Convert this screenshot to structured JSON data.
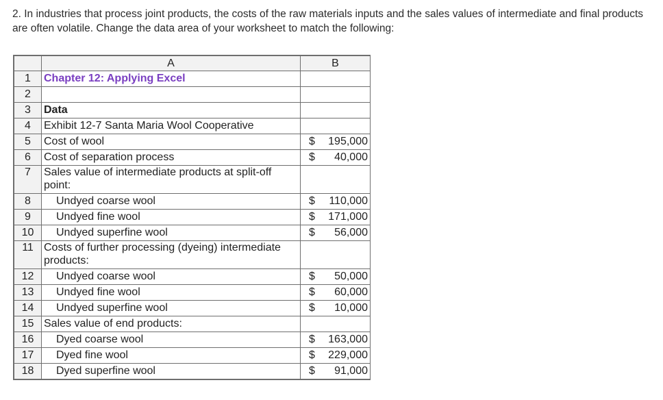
{
  "prompt": "2. In industries that process joint products, the costs of the raw materials inputs and the sales values of intermediate and final products are often volatile. Change the data area of your worksheet to match the following:",
  "sheet": {
    "col_headers": [
      "A",
      "B"
    ],
    "rows": [
      {
        "num": "1",
        "a": "Chapter 12: Applying Excel",
        "b": "",
        "style": "title"
      },
      {
        "num": "2",
        "a": "",
        "b": "",
        "style": "plain"
      },
      {
        "num": "3",
        "a": "Data",
        "b": "",
        "style": "bold"
      },
      {
        "num": "4",
        "a": "Exhibit 12-7 Santa Maria Wool Cooperative",
        "b": "",
        "style": "plain"
      },
      {
        "num": "5",
        "a": "Cost of wool",
        "b": "195,000",
        "style": "plain"
      },
      {
        "num": "6",
        "a": "Cost of separation process",
        "b": "40,000",
        "style": "plain"
      },
      {
        "num": "7",
        "a": "Sales value of intermediate products at split-off point:",
        "b": "",
        "style": "plain"
      },
      {
        "num": "8",
        "a": "Undyed coarse wool",
        "b": "110,000",
        "style": "indent"
      },
      {
        "num": "9",
        "a": "Undyed fine wool",
        "b": "171,000",
        "style": "indent"
      },
      {
        "num": "10",
        "a": "Undyed superfine wool",
        "b": "56,000",
        "style": "indent"
      },
      {
        "num": "11",
        "a": "Costs of further processing (dyeing) intermediate products:",
        "b": "",
        "style": "plain"
      },
      {
        "num": "12",
        "a": "Undyed coarse wool",
        "b": "50,000",
        "style": "indent"
      },
      {
        "num": "13",
        "a": "Undyed fine wool",
        "b": "60,000",
        "style": "indent"
      },
      {
        "num": "14",
        "a": "Undyed superfine wool",
        "b": "10,000",
        "style": "indent"
      },
      {
        "num": "15",
        "a": "Sales value of end products:",
        "b": "",
        "style": "plain"
      },
      {
        "num": "16",
        "a": "Dyed coarse wool",
        "b": "163,000",
        "style": "indent"
      },
      {
        "num": "17",
        "a": "Dyed fine wool",
        "b": "229,000",
        "style": "indent"
      },
      {
        "num": "18",
        "a": "Dyed superfine wool",
        "b": "91,000",
        "style": "indent"
      }
    ],
    "currency_symbol": "$"
  }
}
